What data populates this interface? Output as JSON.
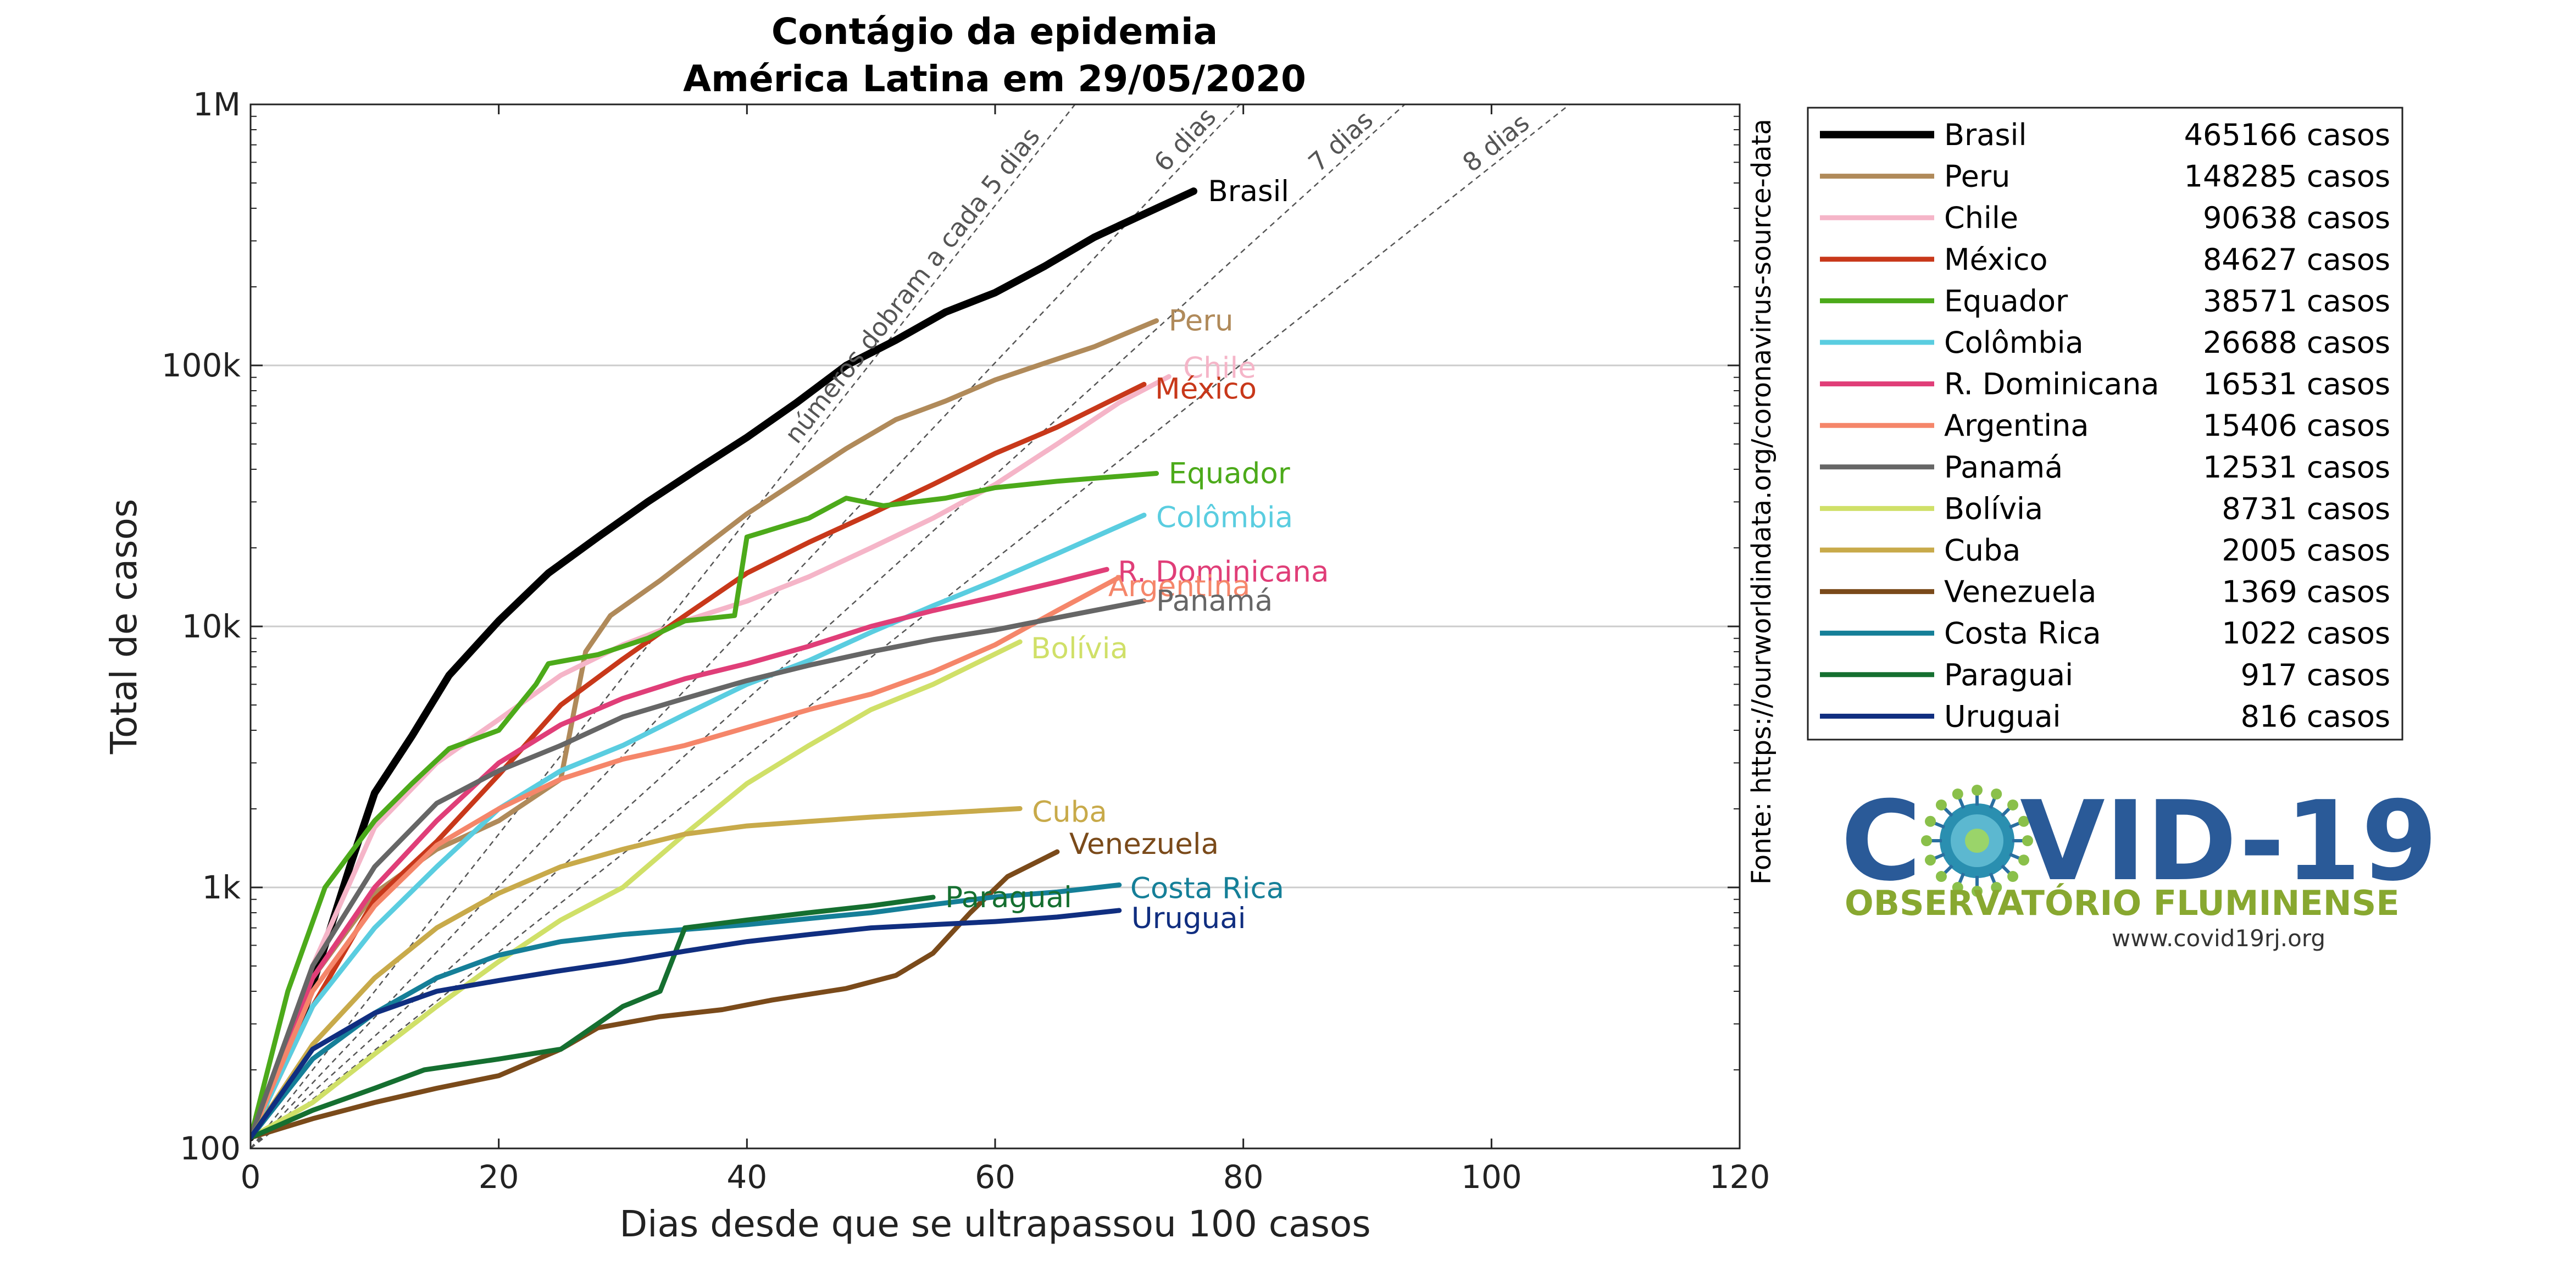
{
  "chart_data": {
    "type": "line",
    "title": [
      "Contágio da epidemia",
      "América Latina em 29/05/2020"
    ],
    "xlabel": "Dias desde que se ultrapassou 100 casos",
    "ylabel": "Total de casos",
    "xlim": [
      0,
      120
    ],
    "ylim": [
      100,
      1000000
    ],
    "yscale": "log",
    "xticks": [
      0,
      20,
      40,
      60,
      80,
      100,
      120
    ],
    "yticks": [
      {
        "value": 100,
        "label": "100"
      },
      {
        "value": 1000,
        "label": "1k"
      },
      {
        "value": 10000,
        "label": "10k"
      },
      {
        "value": 100000,
        "label": "100k"
      },
      {
        "value": 1000000,
        "label": "1M"
      }
    ],
    "grid": "horizontal at decades",
    "source": "Fonte: https://ourworldindata.org/coronavirus-source-data",
    "doubling_lines": [
      {
        "days": 5,
        "label": "números dobram a cada 5 dias"
      },
      {
        "days": 6,
        "label": "6 dias"
      },
      {
        "days": 7,
        "label": "7 dias"
      },
      {
        "days": 8,
        "label": "8 dias"
      }
    ],
    "legend_position": "right",
    "series": [
      {
        "name": "Brasil",
        "cases_label": "465166 casos",
        "color": "#000000",
        "width": 4.5,
        "points": [
          [
            0,
            110
          ],
          [
            4,
            300
          ],
          [
            8,
            1200
          ],
          [
            10,
            2300
          ],
          [
            13,
            3800
          ],
          [
            16,
            6500
          ],
          [
            20,
            10500
          ],
          [
            24,
            16000
          ],
          [
            28,
            22000
          ],
          [
            32,
            30000
          ],
          [
            36,
            40000
          ],
          [
            40,
            53000
          ],
          [
            44,
            72000
          ],
          [
            48,
            100000
          ],
          [
            52,
            125000
          ],
          [
            56,
            160000
          ],
          [
            60,
            190000
          ],
          [
            64,
            240000
          ],
          [
            68,
            310000
          ],
          [
            72,
            380000
          ],
          [
            76,
            465166
          ]
        ]
      },
      {
        "name": "Peru",
        "cases_label": "148285 casos",
        "color": "#b08a5a",
        "width": 3,
        "points": [
          [
            0,
            110
          ],
          [
            5,
            450
          ],
          [
            10,
            950
          ],
          [
            15,
            1400
          ],
          [
            20,
            1800
          ],
          [
            25,
            2600
          ],
          [
            27,
            8000
          ],
          [
            29,
            11000
          ],
          [
            33,
            15000
          ],
          [
            37,
            21000
          ],
          [
            40,
            27000
          ],
          [
            44,
            36000
          ],
          [
            48,
            48000
          ],
          [
            52,
            62000
          ],
          [
            56,
            73000
          ],
          [
            60,
            88000
          ],
          [
            64,
            102000
          ],
          [
            68,
            118000
          ],
          [
            73,
            148285
          ]
        ]
      },
      {
        "name": "Chile",
        "cases_label": "90638 casos",
        "color": "#f5b5c8",
        "width": 3,
        "points": [
          [
            0,
            110
          ],
          [
            5,
            500
          ],
          [
            10,
            1700
          ],
          [
            15,
            3000
          ],
          [
            20,
            4400
          ],
          [
            25,
            6500
          ],
          [
            30,
            8500
          ],
          [
            35,
            10500
          ],
          [
            40,
            12500
          ],
          [
            45,
            15500
          ],
          [
            50,
            20000
          ],
          [
            55,
            26000
          ],
          [
            60,
            35000
          ],
          [
            65,
            50000
          ],
          [
            70,
            72000
          ],
          [
            74,
            90638
          ]
        ]
      },
      {
        "name": "México",
        "cases_label": "84627 casos",
        "color": "#c8381a",
        "width": 3,
        "points": [
          [
            0,
            110
          ],
          [
            5,
            350
          ],
          [
            10,
            900
          ],
          [
            15,
            1500
          ],
          [
            20,
            2700
          ],
          [
            25,
            5000
          ],
          [
            30,
            7500
          ],
          [
            35,
            11000
          ],
          [
            40,
            16000
          ],
          [
            45,
            21000
          ],
          [
            50,
            27000
          ],
          [
            55,
            35000
          ],
          [
            60,
            46000
          ],
          [
            65,
            58000
          ],
          [
            72,
            84627
          ]
        ]
      },
      {
        "name": "Equador",
        "cases_label": "38571 casos",
        "color": "#4caa1a",
        "width": 3,
        "points": [
          [
            0,
            110
          ],
          [
            3,
            400
          ],
          [
            6,
            1000
          ],
          [
            10,
            1800
          ],
          [
            13,
            2500
          ],
          [
            16,
            3400
          ],
          [
            20,
            4000
          ],
          [
            23,
            6000
          ],
          [
            24,
            7200
          ],
          [
            28,
            7800
          ],
          [
            32,
            9000
          ],
          [
            35,
            10500
          ],
          [
            39,
            11000
          ],
          [
            40,
            22000
          ],
          [
            45,
            26000
          ],
          [
            48,
            31000
          ],
          [
            51,
            29000
          ],
          [
            56,
            31000
          ],
          [
            60,
            34000
          ],
          [
            65,
            36000
          ],
          [
            73,
            38571
          ]
        ]
      },
      {
        "name": "Colômbia",
        "cases_label": "26688 casos",
        "color": "#5acde0",
        "width": 3,
        "points": [
          [
            0,
            110
          ],
          [
            5,
            350
          ],
          [
            10,
            700
          ],
          [
            15,
            1200
          ],
          [
            20,
            2000
          ],
          [
            25,
            2800
          ],
          [
            30,
            3500
          ],
          [
            35,
            4600
          ],
          [
            40,
            6000
          ],
          [
            45,
            7400
          ],
          [
            50,
            9500
          ],
          [
            55,
            12000
          ],
          [
            60,
            15000
          ],
          [
            65,
            19000
          ],
          [
            72,
            26688
          ]
        ]
      },
      {
        "name": "R. Dominicana",
        "cases_label": "16531 casos",
        "color": "#e03e78",
        "width": 3,
        "points": [
          [
            0,
            110
          ],
          [
            5,
            450
          ],
          [
            10,
            1000
          ],
          [
            15,
            1800
          ],
          [
            20,
            3000
          ],
          [
            25,
            4200
          ],
          [
            30,
            5300
          ],
          [
            35,
            6300
          ],
          [
            40,
            7200
          ],
          [
            45,
            8400
          ],
          [
            50,
            10000
          ],
          [
            55,
            11500
          ],
          [
            60,
            13000
          ],
          [
            65,
            14800
          ],
          [
            69,
            16531
          ]
        ]
      },
      {
        "name": "Argentina",
        "cases_label": "15406 casos",
        "color": "#f5866a",
        "width": 3,
        "points": [
          [
            0,
            110
          ],
          [
            5,
            400
          ],
          [
            10,
            850
          ],
          [
            15,
            1450
          ],
          [
            20,
            2000
          ],
          [
            25,
            2600
          ],
          [
            30,
            3100
          ],
          [
            35,
            3500
          ],
          [
            40,
            4100
          ],
          [
            45,
            4800
          ],
          [
            50,
            5500
          ],
          [
            55,
            6700
          ],
          [
            60,
            8500
          ],
          [
            65,
            11500
          ],
          [
            70,
            15406
          ]
        ]
      },
      {
        "name": "Panamá",
        "cases_label": "12531 casos",
        "color": "#666666",
        "width": 3,
        "points": [
          [
            0,
            110
          ],
          [
            5,
            500
          ],
          [
            10,
            1200
          ],
          [
            15,
            2100
          ],
          [
            20,
            2800
          ],
          [
            25,
            3500
          ],
          [
            30,
            4500
          ],
          [
            35,
            5300
          ],
          [
            40,
            6200
          ],
          [
            45,
            7100
          ],
          [
            50,
            8000
          ],
          [
            55,
            8900
          ],
          [
            60,
            9700
          ],
          [
            65,
            10800
          ],
          [
            72,
            12531
          ]
        ]
      },
      {
        "name": "Bolívia",
        "cases_label": "8731 casos",
        "color": "#d0e068",
        "width": 3,
        "points": [
          [
            0,
            110
          ],
          [
            5,
            150
          ],
          [
            10,
            230
          ],
          [
            15,
            350
          ],
          [
            20,
            520
          ],
          [
            25,
            750
          ],
          [
            30,
            1000
          ],
          [
            35,
            1600
          ],
          [
            40,
            2500
          ],
          [
            45,
            3500
          ],
          [
            50,
            4800
          ],
          [
            55,
            6000
          ],
          [
            62,
            8731
          ]
        ]
      },
      {
        "name": "Cuba",
        "cases_label": "2005 casos",
        "color": "#c8aa4a",
        "width": 3,
        "points": [
          [
            0,
            110
          ],
          [
            5,
            250
          ],
          [
            10,
            450
          ],
          [
            15,
            700
          ],
          [
            20,
            950
          ],
          [
            25,
            1200
          ],
          [
            30,
            1400
          ],
          [
            35,
            1600
          ],
          [
            40,
            1720
          ],
          [
            45,
            1790
          ],
          [
            50,
            1860
          ],
          [
            55,
            1920
          ],
          [
            62,
            2005
          ]
        ]
      },
      {
        "name": "Venezuela",
        "cases_label": "1369 casos",
        "color": "#7a4a1a",
        "width": 3,
        "points": [
          [
            0,
            110
          ],
          [
            5,
            130
          ],
          [
            10,
            150
          ],
          [
            15,
            170
          ],
          [
            20,
            190
          ],
          [
            25,
            240
          ],
          [
            28,
            290
          ],
          [
            33,
            320
          ],
          [
            38,
            340
          ],
          [
            42,
            370
          ],
          [
            48,
            410
          ],
          [
            52,
            460
          ],
          [
            55,
            560
          ],
          [
            58,
            800
          ],
          [
            61,
            1100
          ],
          [
            65,
            1369
          ]
        ]
      },
      {
        "name": "Costa Rica",
        "cases_label": "1022 casos",
        "color": "#157f98",
        "width": 3,
        "points": [
          [
            0,
            110
          ],
          [
            5,
            220
          ],
          [
            10,
            330
          ],
          [
            15,
            450
          ],
          [
            20,
            550
          ],
          [
            25,
            620
          ],
          [
            30,
            660
          ],
          [
            35,
            690
          ],
          [
            40,
            720
          ],
          [
            45,
            760
          ],
          [
            50,
            800
          ],
          [
            55,
            860
          ],
          [
            60,
            920
          ],
          [
            65,
            960
          ],
          [
            70,
            1022
          ]
        ]
      },
      {
        "name": "Paraguai",
        "cases_label": "917 casos",
        "color": "#156f30",
        "width": 3,
        "points": [
          [
            0,
            110
          ],
          [
            5,
            140
          ],
          [
            10,
            170
          ],
          [
            14,
            200
          ],
          [
            20,
            220
          ],
          [
            25,
            240
          ],
          [
            30,
            350
          ],
          [
            33,
            400
          ],
          [
            35,
            700
          ],
          [
            40,
            750
          ],
          [
            45,
            800
          ],
          [
            50,
            850
          ],
          [
            55,
            917
          ]
        ]
      },
      {
        "name": "Uruguai",
        "cases_label": "816 casos",
        "color": "#102e80",
        "width": 3,
        "points": [
          [
            0,
            110
          ],
          [
            5,
            240
          ],
          [
            10,
            330
          ],
          [
            15,
            400
          ],
          [
            20,
            440
          ],
          [
            25,
            480
          ],
          [
            30,
            520
          ],
          [
            35,
            570
          ],
          [
            40,
            620
          ],
          [
            45,
            660
          ],
          [
            50,
            700
          ],
          [
            55,
            720
          ],
          [
            60,
            740
          ],
          [
            65,
            770
          ],
          [
            70,
            816
          ]
        ]
      }
    ]
  },
  "logo": {
    "left": "C",
    "right": "VID-19",
    "subtitle": "OBSERVATÓRIO FLUMINENSE",
    "url": "www.covid19rj.org"
  }
}
